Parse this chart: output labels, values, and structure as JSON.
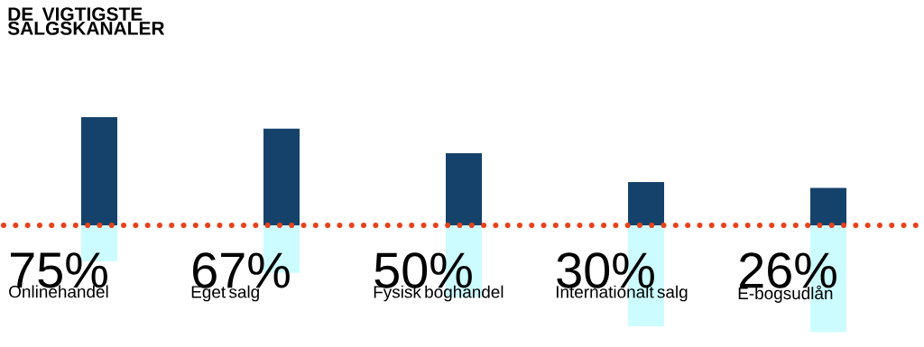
{
  "chart_data": {
    "type": "bar",
    "title": "DE VIGTIGSTE SALGSKANALER",
    "stacked": true,
    "categories": [
      "Onlinehandel",
      "Eget salg",
      "Fysisk boghandel",
      "Internationalt salg",
      "E-bogsudlån"
    ],
    "series": [
      {
        "color": "#15426b",
        "values": [
          75,
          67,
          50,
          30,
          26
        ],
        "value_labels": [
          "75%",
          "67%",
          "50%",
          "30%",
          "26%"
        ]
      },
      {
        "color": "#ccfcff",
        "values": [
          -25,
          -33,
          -50,
          -70,
          -74
        ]
      }
    ],
    "ref_lines": [
      {
        "axis": "y",
        "value": 0,
        "color": "#e8421b",
        "line_style": "dotted"
      }
    ]
  }
}
